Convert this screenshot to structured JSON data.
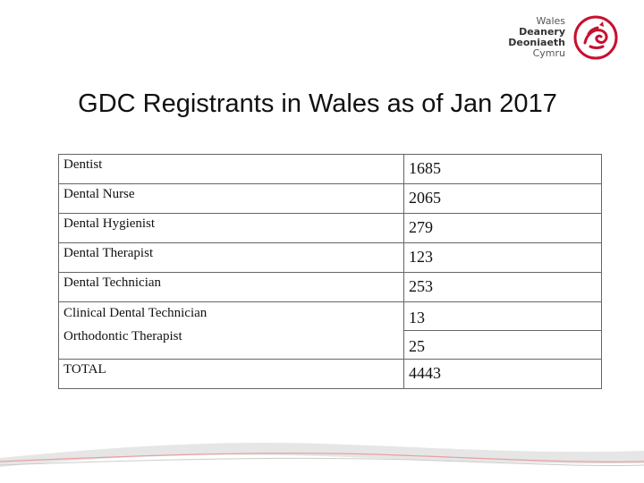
{
  "logo": {
    "line1": "Wales",
    "line2": "Deanery",
    "line3": "Deoniaeth",
    "line4": "Cymru",
    "accent": "#c8102e"
  },
  "title": "GDC Registrants in Wales as of Jan 2017",
  "rows": [
    {
      "label": "Dentist",
      "value": "1685"
    },
    {
      "label": "Dental Nurse",
      "value": "2065"
    },
    {
      "label": "Dental Hygienist",
      "value": "279"
    },
    {
      "label": "Dental Therapist",
      "value": "123"
    },
    {
      "label": "Dental Technician",
      "value": "253"
    },
    {
      "label": "Clinical Dental Technician",
      "value": "13"
    },
    {
      "label": "Orthodontic Therapist",
      "value": "25"
    },
    {
      "label": "TOTAL",
      "value": "4443"
    }
  ],
  "colors": {
    "border": "#666666",
    "swoosh": "#cccccc",
    "swoosh_accent": "#e8a0a0"
  }
}
